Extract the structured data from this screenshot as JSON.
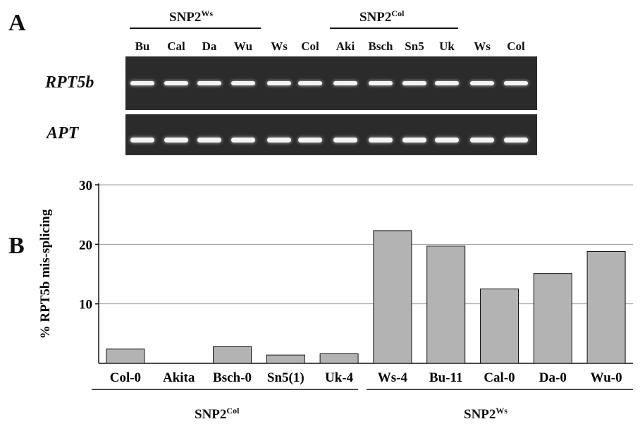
{
  "panel_a": {
    "letter": "A",
    "groups": [
      {
        "base": "SNP2",
        "sup": "Ws"
      },
      {
        "base": "SNP2",
        "sup": "Col"
      }
    ],
    "lanes": [
      "Bu",
      "Cal",
      "Da",
      "Wu",
      "Ws",
      "Col",
      "Aki",
      "Bsch",
      "Sn5",
      "Uk",
      "Ws",
      "Col"
    ],
    "genes": [
      "RPT5b",
      "APT"
    ]
  },
  "panel_b": {
    "letter": "B",
    "groups": [
      {
        "base": "SNP2",
        "sup": "Col"
      },
      {
        "base": "SNP2",
        "sup": "Ws"
      }
    ]
  },
  "chart_data": {
    "type": "bar",
    "categories": [
      "Col-0",
      "Akita",
      "Bsch-0",
      "Sn5(1)",
      "Uk-4",
      "Ws-4",
      "Bu-11",
      "Cal-0",
      "Da-0",
      "Wu-0"
    ],
    "values": [
      2.4,
      0,
      2.8,
      1.4,
      1.6,
      22.3,
      19.7,
      12.5,
      15.1,
      18.8
    ],
    "title": "",
    "xlabel": "",
    "ylabel": "% RPT5b mis-splicing",
    "ylim": [
      0,
      30
    ],
    "yticks": [
      10,
      20,
      30
    ],
    "grid": true,
    "bar_color": "#b3b3b3"
  }
}
